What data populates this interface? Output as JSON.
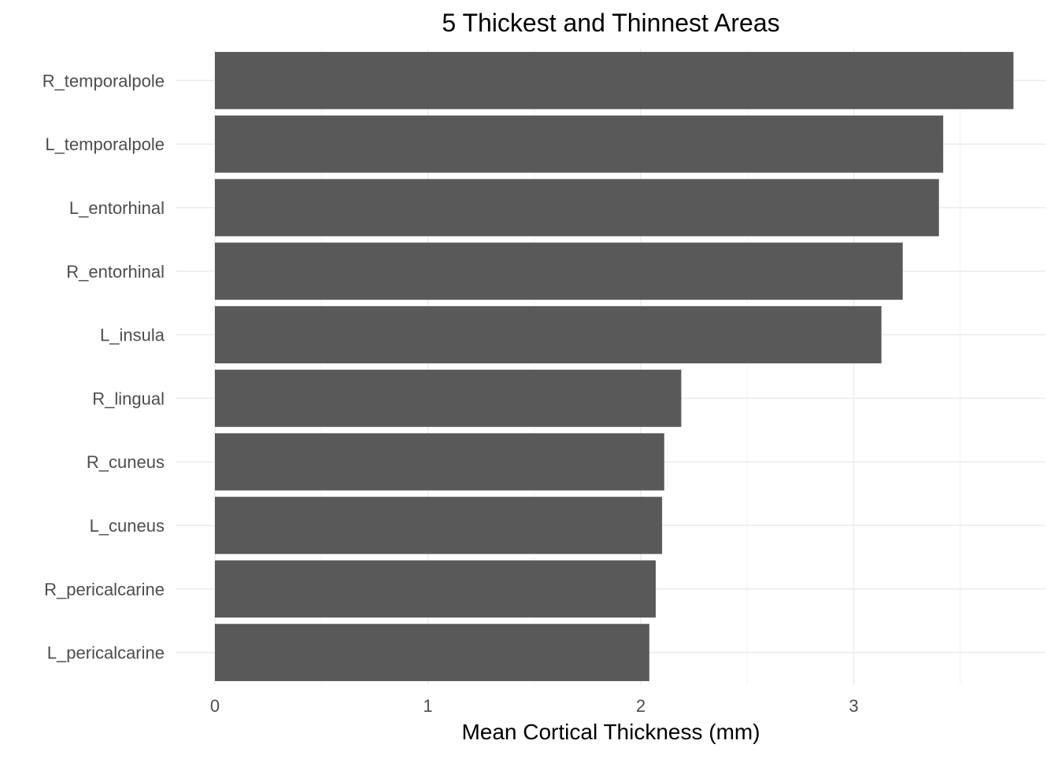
{
  "chart_data": {
    "type": "bar",
    "orientation": "horizontal",
    "title": "5 Thickest and Thinnest Areas",
    "xlabel": "Mean Cortical Thickness (mm)",
    "ylabel": "",
    "categories": [
      "R_temporalpole",
      "L_temporalpole",
      "L_entorhinal",
      "R_entorhinal",
      "L_insula",
      "R_lingual",
      "R_cuneus",
      "L_cuneus",
      "R_pericalcarine",
      "L_pericalcarine"
    ],
    "values": [
      3.75,
      3.42,
      3.4,
      3.23,
      3.13,
      2.19,
      2.11,
      2.1,
      2.07,
      2.04
    ],
    "xlim": [
      0,
      3.9
    ],
    "x_ticks": [
      0,
      1,
      2,
      3
    ],
    "x_tick_labels": [
      "0",
      "1",
      "2",
      "3"
    ],
    "grid": true,
    "legend": "none",
    "bar_color": "#595959",
    "background": "#ffffff"
  }
}
